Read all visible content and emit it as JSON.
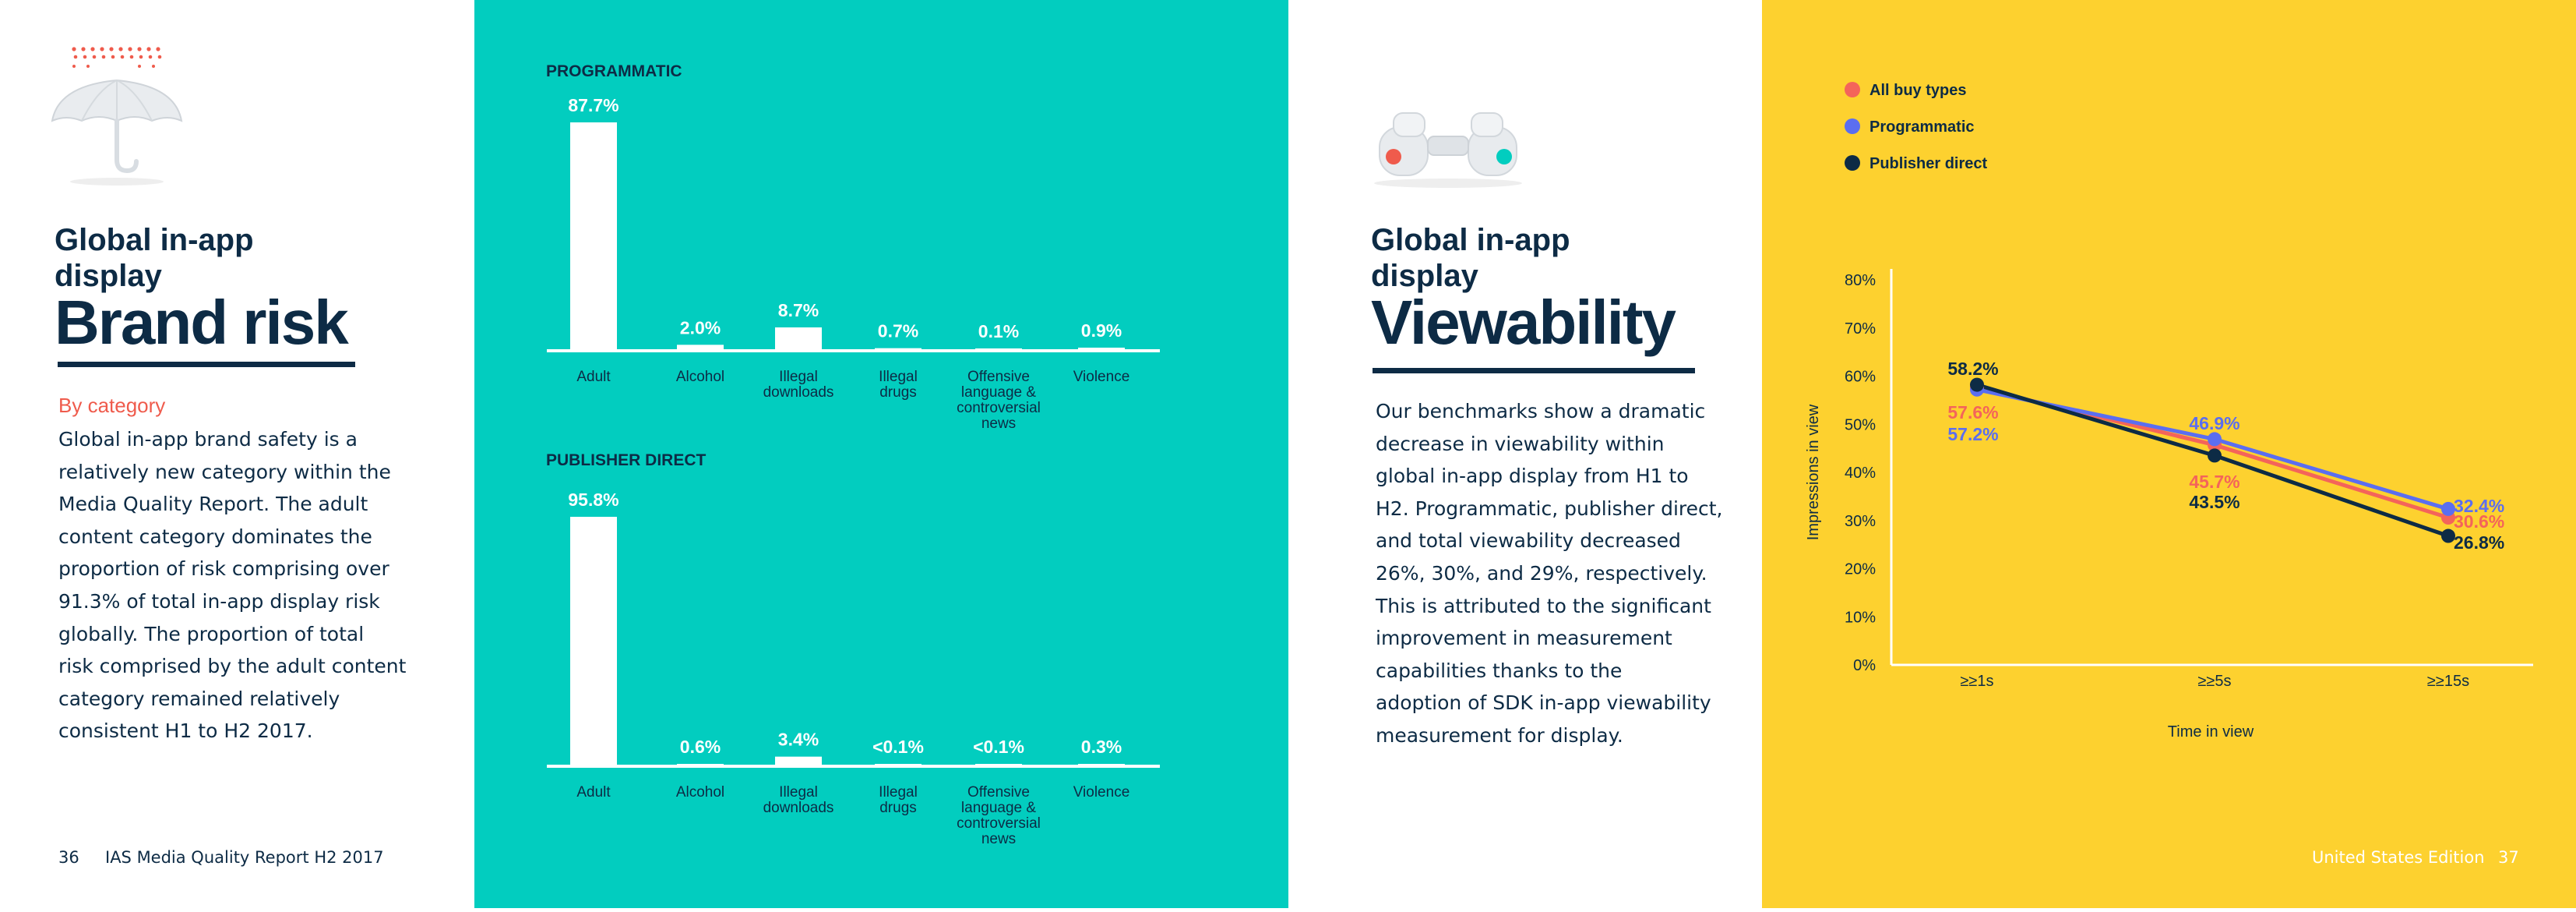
{
  "left_page": {
    "subtitle": "Global in-app display",
    "subtitle_line1": "Global in-app",
    "subtitle_line2": "display",
    "title": "Brand risk",
    "category_label": "By category",
    "body_lines": [
      "Global in-app brand safety is a",
      "relatively new category within the",
      "Media Quality Report. The adult",
      "content category dominates the",
      "proportion of risk comprising over",
      "91.3% of total in-app display risk",
      "globally. The proportion of total",
      "risk comprised by the adult content",
      "category remained relatively",
      "consistent H1 to H2 2017."
    ],
    "page_number": "36",
    "footer": "IAS Media Quality Report H2 2017",
    "icon": "umbrella-icon"
  },
  "right_page": {
    "subtitle_line1": "Global in-app",
    "subtitle_line2": "display",
    "title": "Viewability",
    "body_lines": [
      "Our benchmarks show a dramatic",
      "decrease in viewability within",
      "global in-app display from H1 to",
      "H2. Programmatic, publisher direct,",
      "and total viewability decreased",
      "26%, 30%, and 29%, respectively.",
      "This is attributed to the significant",
      "improvement in measurement",
      "capabilities thanks to the",
      "adoption of SDK in-app viewability",
      "measurement for display."
    ],
    "footer": "United States Edition",
    "page_number": "37",
    "icon": "binoculars-icon"
  },
  "colors": {
    "navy": "#0d2b45",
    "teal": "#02cdbf",
    "yellow": "#fdd12f",
    "coral": "#ef5b4c",
    "all_buy_types": "#f4645a",
    "programmatic": "#5b6ef0",
    "publisher_direct": "#0d2b45"
  },
  "chart_data": [
    {
      "type": "bar",
      "title": "PROGRAMMATIC",
      "categories": [
        "Adult",
        "Alcohol",
        "Illegal downloads",
        "Illegal drugs",
        "Offensive language & controversial news",
        "Violence"
      ],
      "category_lines": [
        [
          "Adult"
        ],
        [
          "Alcohol"
        ],
        [
          "Illegal",
          "downloads"
        ],
        [
          "Illegal",
          "drugs"
        ],
        [
          "Offensive",
          "language &",
          "controversial",
          "news"
        ],
        [
          "Violence"
        ]
      ],
      "values": [
        87.7,
        2.0,
        8.7,
        0.7,
        0.1,
        0.9
      ],
      "value_labels": [
        "87.7%",
        "2.0%",
        "8.7%",
        "0.7%",
        "0.1%",
        "0.9%"
      ],
      "ylim": [
        0,
        87.7
      ]
    },
    {
      "type": "bar",
      "title": "PUBLISHER DIRECT",
      "categories": [
        "Adult",
        "Alcohol",
        "Illegal downloads",
        "Illegal drugs",
        "Offensive language & controversial news",
        "Violence"
      ],
      "category_lines": [
        [
          "Adult"
        ],
        [
          "Alcohol"
        ],
        [
          "Illegal",
          "downloads"
        ],
        [
          "Illegal",
          "drugs"
        ],
        [
          "Offensive",
          "language &",
          "controversial",
          "news"
        ],
        [
          "Violence"
        ]
      ],
      "values": [
        95.8,
        0.6,
        3.4,
        0.1,
        0.1,
        0.3
      ],
      "value_labels": [
        "95.8%",
        "0.6%",
        "3.4%",
        "<0.1%",
        "<0.1%",
        "0.3%"
      ],
      "ylim": [
        0,
        95.8
      ]
    },
    {
      "type": "line",
      "xlabel": "Time in view",
      "ylabel": "Impressions in view",
      "categories": [
        "≥≥1s",
        "≥≥5s",
        "≥≥15s"
      ],
      "y_ticks": [
        "0%",
        "10%",
        "20%",
        "30%",
        "40%",
        "50%",
        "60%",
        "70%",
        "80%"
      ],
      "ylim": [
        0,
        80
      ],
      "legend_position": "top-left",
      "series": [
        {
          "name": "All buy types",
          "color": "#f4645a",
          "values": [
            57.6,
            45.7,
            30.6
          ],
          "labels": [
            "57.6%",
            "45.7%",
            "30.6%"
          ]
        },
        {
          "name": "Programmatic",
          "color": "#5b6ef0",
          "values": [
            57.2,
            46.9,
            32.4
          ],
          "labels": [
            "57.2%",
            "46.9%",
            "32.4%"
          ]
        },
        {
          "name": "Publisher direct",
          "color": "#0d2b45",
          "values": [
            58.2,
            43.5,
            26.8
          ],
          "labels": [
            "58.2%",
            "43.5%",
            "26.8%"
          ]
        }
      ]
    }
  ]
}
